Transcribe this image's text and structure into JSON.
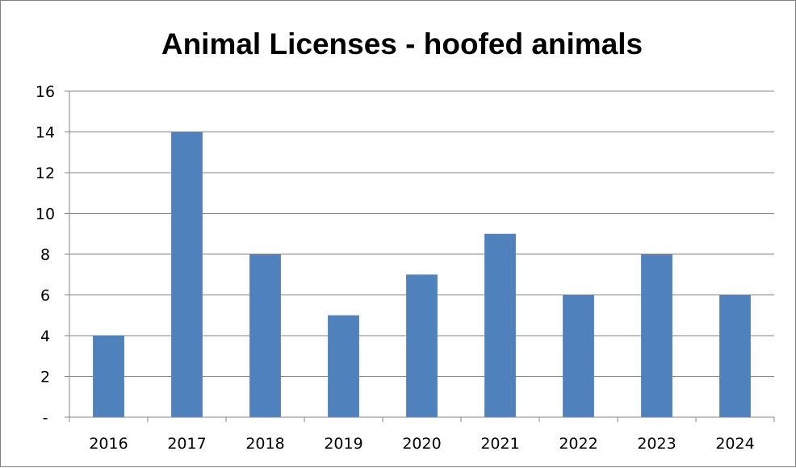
{
  "chart_data": {
    "type": "bar",
    "title": "Animal Licenses  - hoofed animals",
    "xlabel": "",
    "ylabel": "",
    "categories": [
      "2016",
      "2017",
      "2018",
      "2019",
      "2020",
      "2021",
      "2022",
      "2023",
      "2024"
    ],
    "values": [
      4,
      14,
      8,
      5,
      7,
      9,
      6,
      8,
      6
    ],
    "ylim": [
      0,
      16
    ],
    "y_ticks": [
      {
        "value": 0,
        "label": "-"
      },
      {
        "value": 2,
        "label": "2"
      },
      {
        "value": 4,
        "label": "4"
      },
      {
        "value": 6,
        "label": "6"
      },
      {
        "value": 8,
        "label": "8"
      },
      {
        "value": 10,
        "label": "10"
      },
      {
        "value": 12,
        "label": "12"
      },
      {
        "value": 14,
        "label": "14"
      },
      {
        "value": 16,
        "label": "16"
      }
    ],
    "grid": true,
    "legend": "none",
    "colors": {
      "bar": "#4f81bd",
      "grid": "#868686",
      "axis": "#868686"
    }
  }
}
